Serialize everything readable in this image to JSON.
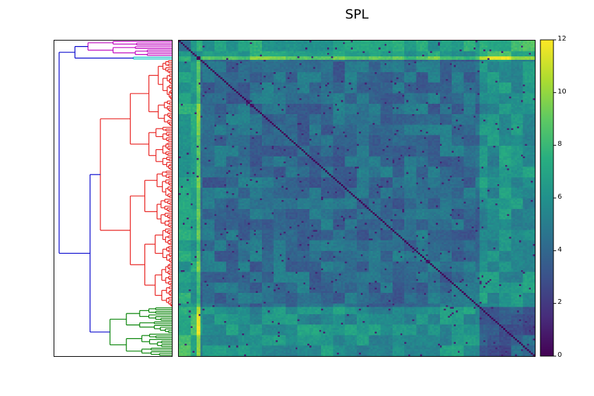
{
  "chart_data": {
    "type": "heatmap",
    "title": "SPL",
    "xlabel": "",
    "ylabel": "",
    "colormap": "viridis",
    "value_range": [
      0,
      12
    ],
    "colorbar_ticks": [
      "0",
      "2",
      "4",
      "6",
      "8",
      "10",
      "12"
    ],
    "n_nodes": 180,
    "diagonal_value": 0,
    "dendrogram": {
      "position": "left",
      "clusters": [
        {
          "color": "#bf00bf",
          "size": 9
        },
        {
          "color": "#00bfbf",
          "size": 2
        },
        {
          "color": "#e8201e",
          "size": 141
        },
        {
          "color": "#008000",
          "size": 28
        }
      ],
      "link_color": "#0000cc"
    },
    "block_values": {
      "magenta-magenta": 5.5,
      "magenta-cyan": 7.0,
      "magenta-red": 6.8,
      "magenta-green": 8.0,
      "cyan-cyan": 1.0,
      "cyan-red": 9.0,
      "cyan-green": 11.0,
      "red-red": 4.2,
      "red-green": 6.0,
      "green-green": 3.5
    }
  }
}
